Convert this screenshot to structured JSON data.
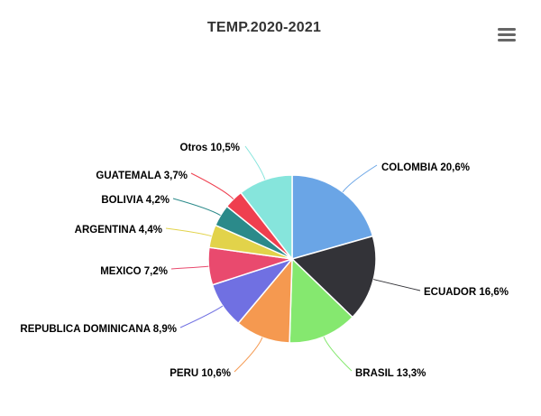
{
  "chart_data": {
    "type": "pie",
    "title": "TEMP.2020-2021",
    "legend": "none",
    "slices": [
      {
        "name": "COLOMBIA",
        "value": 20.6,
        "label": "COLOMBIA 20,6%",
        "color": "#6aa5e6"
      },
      {
        "name": "ECUADOR",
        "value": 16.6,
        "label": "ECUADOR 16,6%",
        "color": "#333338"
      },
      {
        "name": "BRASIL",
        "value": 13.3,
        "label": "BRASIL 13,3%",
        "color": "#85e86f"
      },
      {
        "name": "PERU",
        "value": 10.6,
        "label": "PERU 10,6%",
        "color": "#f59950"
      },
      {
        "name": "REPUBLICA DOMINICANA",
        "value": 8.9,
        "label": "REPUBLICA DOMINICANA 8,9%",
        "color": "#7070e2"
      },
      {
        "name": "MEXICO",
        "value": 7.2,
        "label": "MEXICO 7,2%",
        "color": "#e94a6e"
      },
      {
        "name": "ARGENTINA",
        "value": 4.4,
        "label": "ARGENTINA 4,4%",
        "color": "#e2d34a"
      },
      {
        "name": "BOLIVIA",
        "value": 4.2,
        "label": "BOLIVIA 4,2%",
        "color": "#2b8a8a"
      },
      {
        "name": "GUATEMALA",
        "value": 3.7,
        "label": "GUATEMALA 3,7%",
        "color": "#ef3f4f"
      },
      {
        "name": "Otros",
        "value": 10.5,
        "label": "Otros 10,5%",
        "color": "#86e5dc"
      }
    ]
  },
  "menu_icon": "hamburger-menu-icon"
}
